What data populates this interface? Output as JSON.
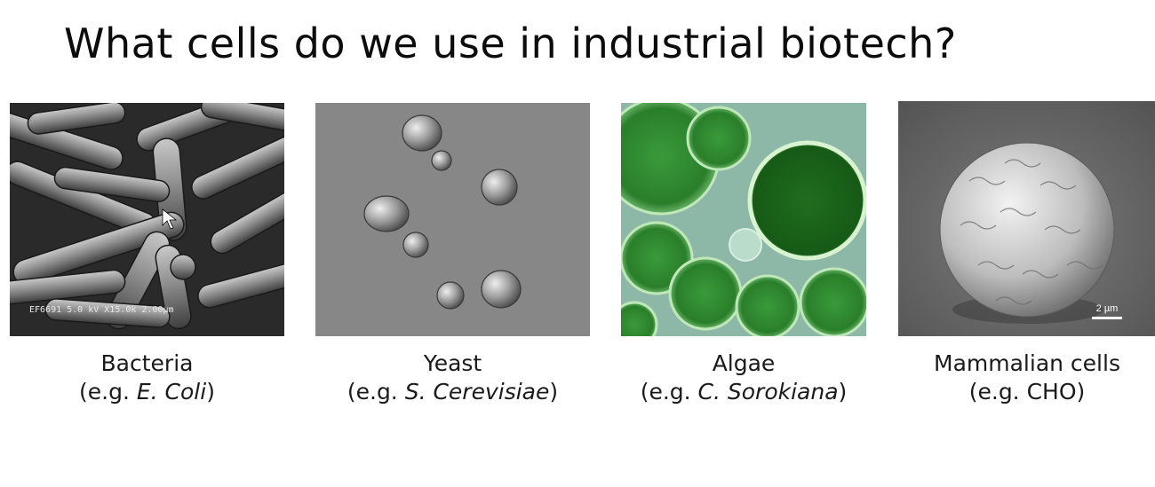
{
  "slide": {
    "title": "What cells do we use in industrial biotech?"
  },
  "cells": [
    {
      "name": "Bacteria",
      "example_prefix": "(e.g. ",
      "example_name": "E. Coli",
      "example_suffix": ")",
      "image_icon": "bacteria-micrograph",
      "micrograph_label": "EF6691 5.0 kV X15.0k 2.00µm"
    },
    {
      "name": "Yeast",
      "example_prefix": "(e.g. ",
      "example_name": "S. Cerevisiae",
      "example_suffix": ")",
      "image_icon": "yeast-micrograph"
    },
    {
      "name": "Algae",
      "example_prefix": "(e.g. ",
      "example_name": "C. Sorokiana",
      "example_suffix": ")",
      "image_icon": "algae-micrograph"
    },
    {
      "name": "Mammalian cells",
      "example_prefix": "(e.g. CHO)",
      "example_name": "",
      "example_suffix": "",
      "image_icon": "mammalian-cell-micrograph",
      "scale_bar_label": "2 µm"
    }
  ],
  "colors": {
    "background": "#ffffff",
    "title_text": "#0c0c0c",
    "bacteria_bg": "#2a2a2a",
    "yeast_bg": "#8a8a8a",
    "algae_bg": "#8fb9a8",
    "algae_cell": "#2f8f2f",
    "mammalian_bg": "#6a6a6a"
  }
}
